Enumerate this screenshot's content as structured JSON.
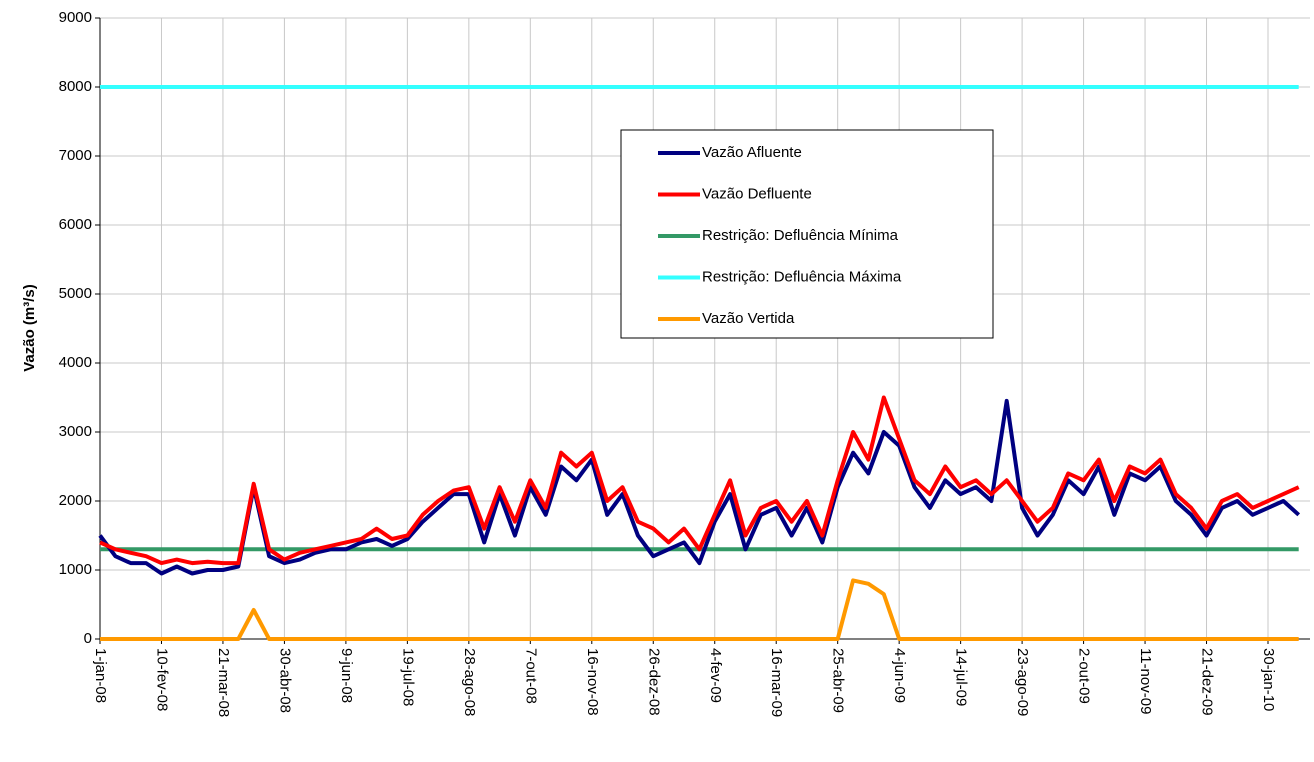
{
  "chart_data": {
    "type": "line",
    "y_label": "Vazão (m³/s)",
    "categories": [
      "1-jan-08",
      null,
      null,
      null,
      "10-fev-08",
      null,
      null,
      null,
      "21-mar-08",
      null,
      null,
      null,
      "30-abr-08",
      null,
      null,
      null,
      "9-jun-08",
      null,
      null,
      null,
      "19-jul-08",
      null,
      null,
      null,
      "28-ago-08",
      null,
      null,
      null,
      "7-out-08",
      null,
      null,
      null,
      "16-nov-08",
      null,
      null,
      null,
      "26-dez-08",
      null,
      null,
      null,
      "4-fev-09",
      null,
      null,
      null,
      "16-mar-09",
      null,
      null,
      null,
      "25-abr-09",
      null,
      null,
      null,
      "4-jun-09",
      null,
      null,
      null,
      "14-jul-09",
      null,
      null,
      null,
      "23-ago-09",
      null,
      null,
      null,
      "2-out-09",
      null,
      null,
      null,
      "11-nov-09",
      null,
      null,
      null,
      "21-dez-09",
      null,
      null,
      null,
      "30-jan-10",
      null,
      null
    ],
    "series": [
      {
        "name": "Vazão Afluente",
        "color": "#000080",
        "values": [
          1500,
          1200,
          1100,
          1100,
          950,
          1050,
          950,
          1000,
          1000,
          1050,
          2200,
          1200,
          1100,
          1150,
          1250,
          1300,
          1300,
          1400,
          1450,
          1350,
          1450,
          1700,
          1900,
          2100,
          2100,
          1400,
          2100,
          1500,
          2200,
          1800,
          2500,
          2300,
          2600,
          1800,
          2100,
          1500,
          1200,
          1300,
          1400,
          1100,
          1700,
          2100,
          1300,
          1800,
          1900,
          1500,
          1900,
          1400,
          2200,
          2700,
          2400,
          3000,
          2800,
          2200,
          1900,
          2300,
          2100,
          2200,
          2000,
          3450,
          1900,
          1500,
          1800,
          2300,
          2100,
          2500,
          1800,
          2400,
          2300,
          2500,
          2000,
          1800,
          1500,
          1900,
          2000,
          1800,
          1900,
          2000,
          1800
        ]
      },
      {
        "name": "Vazão Defluente",
        "color": "#ff0000",
        "values": [
          1400,
          1300,
          1250,
          1200,
          1100,
          1150,
          1100,
          1120,
          1100,
          1100,
          2250,
          1300,
          1150,
          1250,
          1300,
          1350,
          1400,
          1450,
          1600,
          1450,
          1500,
          1800,
          2000,
          2150,
          2200,
          1600,
          2200,
          1700,
          2300,
          1900,
          2700,
          2500,
          2700,
          2000,
          2200,
          1700,
          1600,
          1400,
          1600,
          1300,
          1800,
          2300,
          1500,
          1900,
          2000,
          1700,
          2000,
          1500,
          2300,
          3000,
          2600,
          3500,
          2900,
          2300,
          2100,
          2500,
          2200,
          2300,
          2100,
          2300,
          2000,
          1700,
          1900,
          2400,
          2300,
          2600,
          2000,
          2500,
          2400,
          2600,
          2100,
          1900,
          1600,
          2000,
          2100,
          1900,
          2000,
          2100,
          2200
        ]
      },
      {
        "name": "Restrição: Defluência Mínima",
        "color": "#339966",
        "values": [
          1300,
          1300,
          1300,
          1300,
          1300,
          1300,
          1300,
          1300,
          1300,
          1300,
          1300,
          1300,
          1300,
          1300,
          1300,
          1300,
          1300,
          1300,
          1300,
          1300,
          1300,
          1300,
          1300,
          1300,
          1300,
          1300,
          1300,
          1300,
          1300,
          1300,
          1300,
          1300,
          1300,
          1300,
          1300,
          1300,
          1300,
          1300,
          1300,
          1300,
          1300,
          1300,
          1300,
          1300,
          1300,
          1300,
          1300,
          1300,
          1300,
          1300,
          1300,
          1300,
          1300,
          1300,
          1300,
          1300,
          1300,
          1300,
          1300,
          1300,
          1300,
          1300,
          1300,
          1300,
          1300,
          1300,
          1300,
          1300,
          1300,
          1300,
          1300,
          1300,
          1300,
          1300,
          1300,
          1300,
          1300,
          1300,
          1300
        ]
      },
      {
        "name": "Restrição: Defluência Máxima",
        "color": "#33ffff",
        "values": [
          8000,
          8000,
          8000,
          8000,
          8000,
          8000,
          8000,
          8000,
          8000,
          8000,
          8000,
          8000,
          8000,
          8000,
          8000,
          8000,
          8000,
          8000,
          8000,
          8000,
          8000,
          8000,
          8000,
          8000,
          8000,
          8000,
          8000,
          8000,
          8000,
          8000,
          8000,
          8000,
          8000,
          8000,
          8000,
          8000,
          8000,
          8000,
          8000,
          8000,
          8000,
          8000,
          8000,
          8000,
          8000,
          8000,
          8000,
          8000,
          8000,
          8000,
          8000,
          8000,
          8000,
          8000,
          8000,
          8000,
          8000,
          8000,
          8000,
          8000,
          8000,
          8000,
          8000,
          8000,
          8000,
          8000,
          8000,
          8000,
          8000,
          8000,
          8000,
          8000,
          8000,
          8000,
          8000,
          8000,
          8000,
          8000,
          8000
        ]
      },
      {
        "name": "Vazão Vertida",
        "color": "#ff9900",
        "values": [
          0,
          0,
          0,
          0,
          0,
          0,
          0,
          0,
          0,
          0,
          420,
          0,
          0,
          0,
          0,
          0,
          0,
          0,
          0,
          0,
          0,
          0,
          0,
          0,
          0,
          0,
          0,
          0,
          0,
          0,
          0,
          0,
          0,
          0,
          0,
          0,
          0,
          0,
          0,
          0,
          0,
          0,
          0,
          0,
          0,
          0,
          0,
          0,
          0,
          850,
          800,
          650,
          0,
          0,
          0,
          0,
          0,
          0,
          0,
          0,
          0,
          0,
          0,
          0,
          0,
          0,
          0,
          0,
          0,
          0,
          0,
          0,
          0,
          0,
          0,
          0,
          0,
          0,
          0
        ]
      }
    ],
    "ylim": [
      0,
      9000
    ],
    "yticks": [
      0,
      1000,
      2000,
      3000,
      4000,
      5000,
      6000,
      7000,
      8000,
      9000
    ],
    "grid": true,
    "legend": "upper-center"
  }
}
